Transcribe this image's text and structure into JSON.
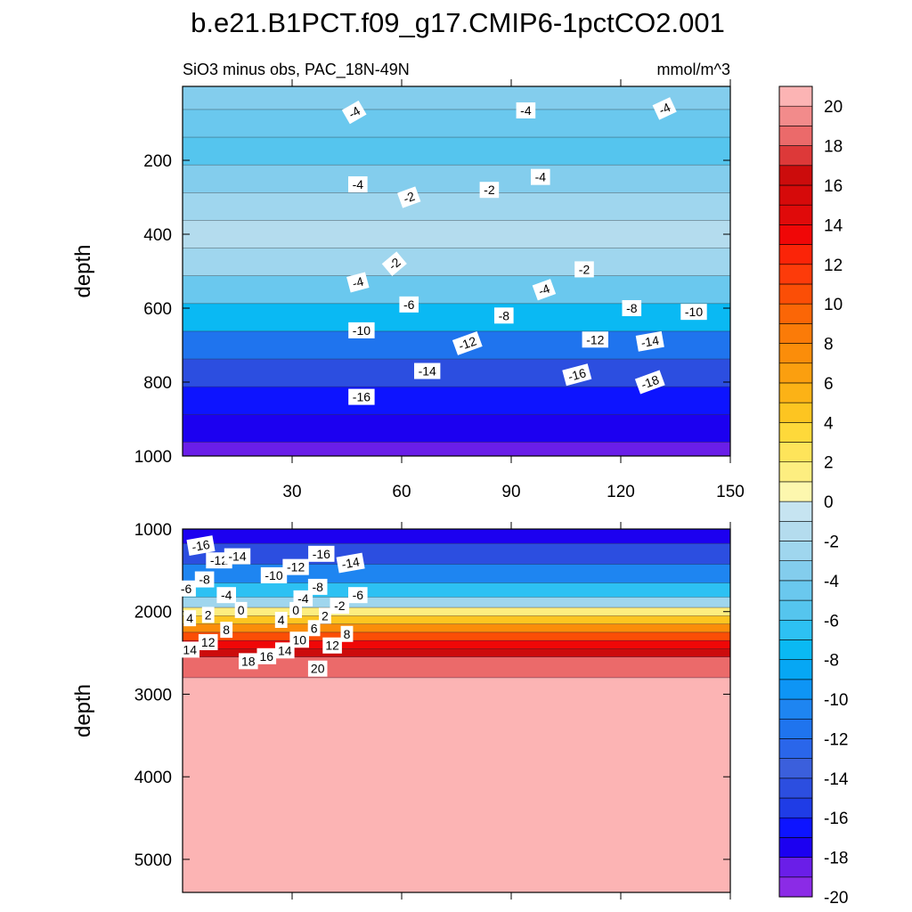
{
  "chart_data": {
    "type": "heatmap",
    "title": "b.e21.B1PCT.f09_g17.CMIP6-1pctCO2.001",
    "subtitle_left": "SiO3 minus obs, PAC_18N-49N",
    "subtitle_right": "mmol/m^3",
    "colorbar": {
      "levels": [
        -20,
        -19,
        -18,
        -17,
        -16,
        -15,
        -14,
        -13,
        -12,
        -11,
        -10,
        -9,
        -8,
        -7,
        -6,
        -5,
        -4,
        -3,
        -2,
        -1,
        0,
        1,
        2,
        3,
        4,
        5,
        6,
        7,
        8,
        9,
        10,
        11,
        12,
        13,
        14,
        15,
        16,
        17,
        18,
        19,
        20
      ],
      "tick_labels": [
        "20",
        "18",
        "16",
        "14",
        "12",
        "10",
        "8",
        "6",
        "4",
        "2",
        "0",
        "-2",
        "-4",
        "-6",
        "-8",
        "-10",
        "-12",
        "-14",
        "-16",
        "-18",
        "-20"
      ],
      "colors": [
        "#8b2be6",
        "#6a1ee8",
        "#1c00f0",
        "#0d14ff",
        "#1f3ce6",
        "#2c4ee0",
        "#3b5fdc",
        "#2a66ea",
        "#1f74ee",
        "#1e85f1",
        "#0e95f5",
        "#06a7f4",
        "#0ab9f3",
        "#2dc1f3",
        "#55c5ee",
        "#6ac8ee",
        "#83cded",
        "#9fd6ee",
        "#b4dcee",
        "#c6e4f1",
        "#fdf7ae",
        "#fdee80",
        "#fee45a",
        "#fed93a",
        "#fdc521",
        "#fcb216",
        "#fb9f0f",
        "#fb8d0a",
        "#fb7b08",
        "#fb6606",
        "#fb4e06",
        "#fd3b0a",
        "#fb2408",
        "#f00707",
        "#e00a0a",
        "#d60a0a",
        "#cc0c0c",
        "#dd3939",
        "#eb6a6a",
        "#f28b8b",
        "#fcb4b4"
      ]
    },
    "panels": [
      {
        "name": "upper",
        "xlabel": "",
        "ylabel": "depth",
        "xlim": [
          0,
          150
        ],
        "ylim": [
          1000,
          0
        ],
        "x_ticks": [
          "30",
          "60",
          "90",
          "120",
          "150"
        ],
        "y_ticks": [
          "200",
          "400",
          "600",
          "800",
          "1000"
        ],
        "depth_bands": [
          {
            "depth": 25,
            "value": -3.2
          },
          {
            "depth": 100,
            "value": -4.8
          },
          {
            "depth": 175,
            "value": -5.2
          },
          {
            "depth": 250,
            "value": -4.0
          },
          {
            "depth": 325,
            "value": -2.5
          },
          {
            "depth": 400,
            "value": -1.5
          },
          {
            "depth": 475,
            "value": -2.5
          },
          {
            "depth": 550,
            "value": -4.5
          },
          {
            "depth": 625,
            "value": -7.5
          },
          {
            "depth": 700,
            "value": -11.5
          },
          {
            "depth": 775,
            "value": -14.5
          },
          {
            "depth": 850,
            "value": -17.0
          },
          {
            "depth": 925,
            "value": -18.0
          },
          {
            "depth": 1000,
            "value": -18.5
          }
        ],
        "contour_labels": [
          {
            "text": "-4",
            "x": 47,
            "depth": 70,
            "angle": -30
          },
          {
            "text": "-4",
            "x": 94,
            "depth": 65,
            "angle": 0
          },
          {
            "text": "-4",
            "x": 132,
            "depth": 60,
            "angle": -25
          },
          {
            "text": "-4",
            "x": 48,
            "depth": 265,
            "angle": 0
          },
          {
            "text": "-2",
            "x": 62,
            "depth": 300,
            "angle": -20
          },
          {
            "text": "-2",
            "x": 84,
            "depth": 280,
            "angle": 0
          },
          {
            "text": "-4",
            "x": 98,
            "depth": 245,
            "angle": 0
          },
          {
            "text": "-2",
            "x": 58,
            "depth": 480,
            "angle": -40
          },
          {
            "text": "-4",
            "x": 48,
            "depth": 530,
            "angle": -15
          },
          {
            "text": "-6",
            "x": 62,
            "depth": 590,
            "angle": 0
          },
          {
            "text": "-2",
            "x": 110,
            "depth": 495,
            "angle": 0
          },
          {
            "text": "-4",
            "x": 99,
            "depth": 550,
            "angle": -20
          },
          {
            "text": "-8",
            "x": 88,
            "depth": 620,
            "angle": 0
          },
          {
            "text": "-8",
            "x": 123,
            "depth": 600,
            "angle": 0
          },
          {
            "text": "-10",
            "x": 140,
            "depth": 610,
            "angle": 0
          },
          {
            "text": "-10",
            "x": 49,
            "depth": 660,
            "angle": 0
          },
          {
            "text": "-12",
            "x": 78,
            "depth": 695,
            "angle": -20
          },
          {
            "text": "-12",
            "x": 113,
            "depth": 685,
            "angle": 0
          },
          {
            "text": "-14",
            "x": 128,
            "depth": 690,
            "angle": -10
          },
          {
            "text": "-14",
            "x": 67,
            "depth": 770,
            "angle": 0
          },
          {
            "text": "-16",
            "x": 108,
            "depth": 780,
            "angle": -15
          },
          {
            "text": "-18",
            "x": 128,
            "depth": 800,
            "angle": -20
          },
          {
            "text": "-16",
            "x": 49,
            "depth": 840,
            "angle": 0
          }
        ]
      },
      {
        "name": "lower",
        "xlabel": "",
        "ylabel": "depth",
        "xlim": [
          0,
          150
        ],
        "ylim": [
          5400,
          1000
        ],
        "y_ticks": [
          "1000",
          "2000",
          "3000",
          "4000",
          "5000"
        ],
        "depth_bands": [
          {
            "depth": 1050,
            "value": -18.0
          },
          {
            "depth": 1300,
            "value": -15.0
          },
          {
            "depth": 1550,
            "value": -11.0
          },
          {
            "depth": 1750,
            "value": -7.0
          },
          {
            "depth": 1900,
            "value": -3.0
          },
          {
            "depth": 2000,
            "value": 1.0
          },
          {
            "depth": 2100,
            "value": 4.0
          },
          {
            "depth": 2200,
            "value": 7.0
          },
          {
            "depth": 2300,
            "value": 10.0
          },
          {
            "depth": 2400,
            "value": 13.0
          },
          {
            "depth": 2500,
            "value": 16.0
          },
          {
            "depth": 2600,
            "value": 18.5
          },
          {
            "depth": 3000,
            "value": 20.5
          }
        ],
        "contour_labels": [
          {
            "text": "-16",
            "x": 5,
            "depth": 1200,
            "angle": -10
          },
          {
            "text": "-12",
            "x": 10,
            "depth": 1380,
            "angle": 0
          },
          {
            "text": "-14",
            "x": 15,
            "depth": 1330,
            "angle": 0
          },
          {
            "text": "-16",
            "x": 38,
            "depth": 1300,
            "angle": 0
          },
          {
            "text": "-14",
            "x": 46,
            "depth": 1410,
            "angle": -10
          },
          {
            "text": "-8",
            "x": 6,
            "depth": 1610,
            "angle": 0
          },
          {
            "text": "-6",
            "x": 1,
            "depth": 1720,
            "angle": 0
          },
          {
            "text": "-4",
            "x": 12,
            "depth": 1800,
            "angle": 0
          },
          {
            "text": "-10",
            "x": 25,
            "depth": 1560,
            "angle": 0
          },
          {
            "text": "-12",
            "x": 31,
            "depth": 1460,
            "angle": 0
          },
          {
            "text": "-8",
            "x": 37,
            "depth": 1700,
            "angle": 0
          },
          {
            "text": "-4",
            "x": 33,
            "depth": 1840,
            "angle": 0
          },
          {
            "text": "-6",
            "x": 48,
            "depth": 1800,
            "angle": 0
          },
          {
            "text": "-2",
            "x": 43,
            "depth": 1930,
            "angle": 0
          },
          {
            "text": "0",
            "x": 16,
            "depth": 1980,
            "angle": 0
          },
          {
            "text": "0",
            "x": 31,
            "depth": 1980,
            "angle": 0
          },
          {
            "text": "2",
            "x": 7,
            "depth": 2040,
            "angle": 0
          },
          {
            "text": "4",
            "x": 2,
            "depth": 2080,
            "angle": 0
          },
          {
            "text": "4",
            "x": 27,
            "depth": 2100,
            "angle": 0
          },
          {
            "text": "2",
            "x": 39,
            "depth": 2050,
            "angle": 0
          },
          {
            "text": "6",
            "x": 36,
            "depth": 2200,
            "angle": 0
          },
          {
            "text": "8",
            "x": 12,
            "depth": 2220,
            "angle": 0
          },
          {
            "text": "8",
            "x": 45,
            "depth": 2270,
            "angle": 0
          },
          {
            "text": "10",
            "x": 32,
            "depth": 2340,
            "angle": 0
          },
          {
            "text": "12",
            "x": 7,
            "depth": 2370,
            "angle": 0
          },
          {
            "text": "12",
            "x": 41,
            "depth": 2410,
            "angle": 0
          },
          {
            "text": "14",
            "x": 2,
            "depth": 2460,
            "angle": 0
          },
          {
            "text": "14",
            "x": 28,
            "depth": 2470,
            "angle": 0
          },
          {
            "text": "16",
            "x": 23,
            "depth": 2540,
            "angle": 0
          },
          {
            "text": "18",
            "x": 18,
            "depth": 2600,
            "angle": 0
          },
          {
            "text": "20",
            "x": 37,
            "depth": 2690,
            "angle": 0
          }
        ]
      }
    ]
  }
}
